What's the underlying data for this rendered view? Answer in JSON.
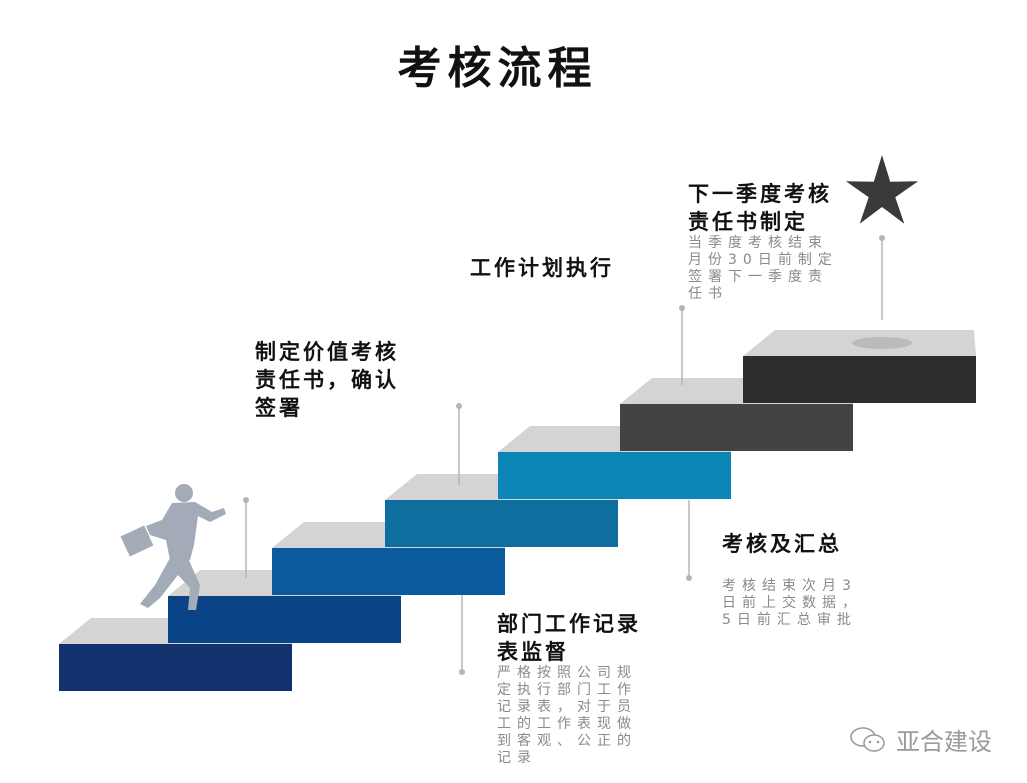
{
  "title": "考核流程",
  "steps": [
    {
      "label": "制定价值考核责任书，确认签署"
    },
    {
      "label": "部门工作记录表监督",
      "desc": "严格按照公司规定执行部门工作记录表，对于员工的工作表现做到客观、公正的记录"
    },
    {
      "label": "工作计划执行"
    },
    {
      "label": "考核及汇总",
      "desc": "考核结束次月3日前上交数据，5日前汇总审批"
    },
    {
      "label": "下一季度考核责任书制定",
      "desc": "当季度考核结束月份30日前制定签署下一季度责任书"
    }
  ],
  "stair_colors": [
    "#12326e",
    "#0b4486",
    "#0a5b9d",
    "#0e6f9f",
    "#0a85b5",
    "#434343",
    "#2d2d2d"
  ],
  "icons": {
    "goal": "star-icon",
    "person": "running-businessman-icon",
    "watermark": "wechat-icon"
  },
  "watermark": "亚合建设"
}
